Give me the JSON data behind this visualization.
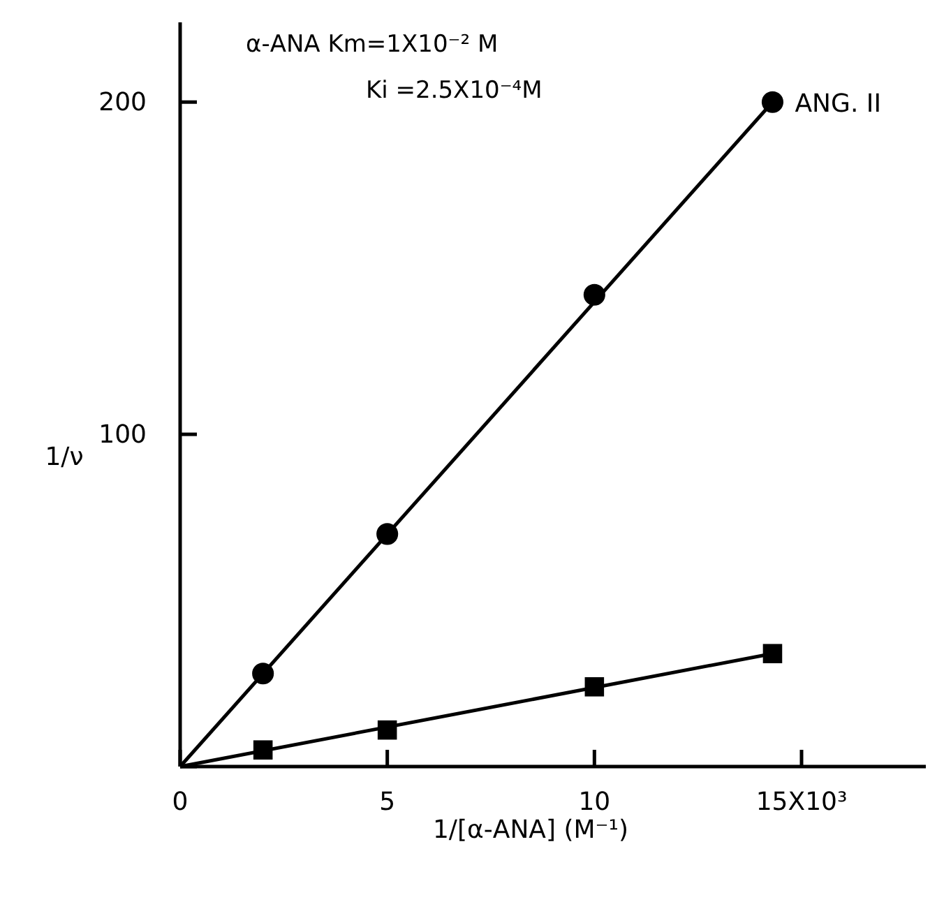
{
  "chart_data": {
    "type": "scatter",
    "xlabel": "1/[α-ANA] (M⁻¹)",
    "ylabel": "1/ν",
    "annotations": [
      "α-ANA  Km=1X10⁻² M",
      "Ki =2.5X10⁻⁴M"
    ],
    "xlim": [
      0,
      18
    ],
    "ylim": [
      0,
      224
    ],
    "xticks": [
      0,
      5,
      10,
      {
        "value": 15,
        "label": "15X10³"
      }
    ],
    "yticks": [
      {
        "value": 0,
        "label": null
      },
      100,
      200
    ],
    "grid": false,
    "series": [
      {
        "name": "ANG. II",
        "marker": "circle",
        "color": "#000000",
        "x": [
          2,
          5,
          10,
          14.3
        ],
        "values": [
          28,
          70,
          142,
          200
        ]
      },
      {
        "marker": "square",
        "color": "#000000",
        "x": [
          2,
          5,
          10,
          14.3
        ],
        "values": [
          5,
          11,
          24,
          34
        ]
      },
      {
        "type": "line",
        "marker": "none",
        "line_style": "solid",
        "color": "#000000",
        "x": [
          0,
          14.3
        ],
        "values": [
          0,
          200
        ]
      },
      {
        "type": "line",
        "marker": "none",
        "line_style": "solid",
        "color": "#000000",
        "x": [
          0,
          14.3
        ],
        "values": [
          0,
          34
        ]
      }
    ]
  }
}
